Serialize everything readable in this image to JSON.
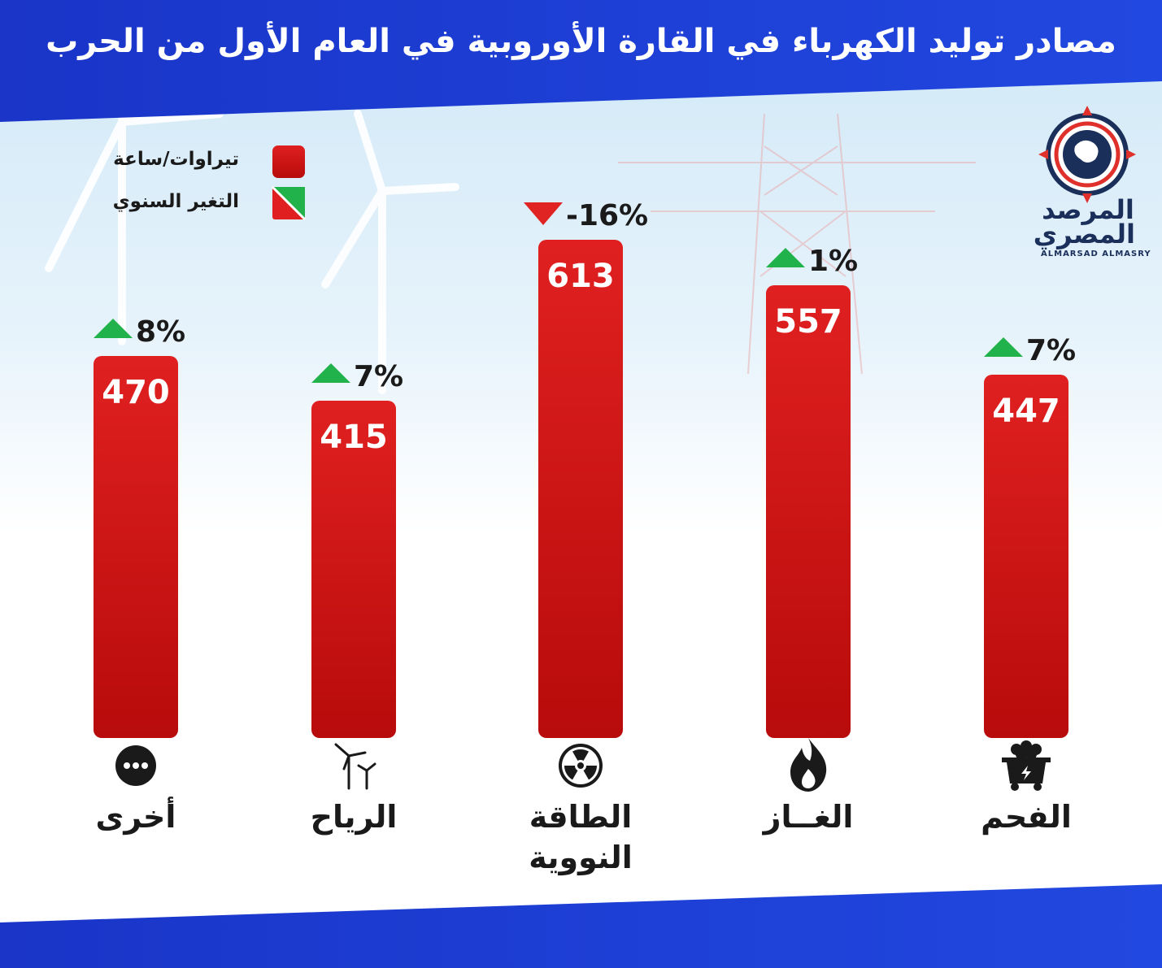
{
  "title": "مصادر توليد الكهرباء في القارة الأوروبية في العام الأول من الحرب",
  "legend": {
    "value_label": "تيراوات/ساعة",
    "change_label": "التغير السنوي"
  },
  "logo": {
    "arabic_line1": "المرصد",
    "arabic_line2": "المصري",
    "english": "ALMARSAD ALMASRY"
  },
  "colors": {
    "bar_top": "#e02020",
    "bar_bottom": "#b80b0b",
    "header_blue": "#1b3fd8",
    "up_arrow": "#21b24b",
    "down_arrow": "#e02424",
    "text_dark": "#1a1a1a"
  },
  "chart_data": {
    "type": "bar",
    "unit": "تيراوات/ساعة",
    "categories": [
      "أخرى",
      "الرياح",
      "الطاقة النووية",
      "الغــاز",
      "الفحم"
    ],
    "values": [
      470,
      415,
      613,
      557,
      447
    ],
    "value_labels": [
      "470",
      "415",
      "613",
      "557",
      "447"
    ],
    "changes": [
      {
        "label": "8%",
        "direction": "up"
      },
      {
        "label": "7%",
        "direction": "up"
      },
      {
        "label": "-16%",
        "direction": "down"
      },
      {
        "label": "1%",
        "direction": "up"
      },
      {
        "label": "7%",
        "direction": "up"
      }
    ],
    "icons": [
      "more-icon",
      "wind-turbine-icon",
      "radiation-icon",
      "flame-icon",
      "coal-cart-icon"
    ]
  }
}
